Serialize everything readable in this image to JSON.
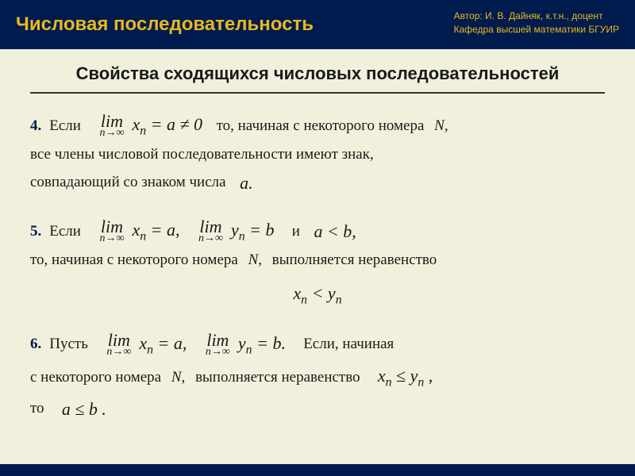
{
  "header": {
    "title": "Числовая последовательность",
    "author_line1": "Автор:  И. В. Дайняк,  к.т.н.,  доцент",
    "author_line2": "Кафедра высшей математики БГУИР"
  },
  "subtitle": "Свойства сходящихся числовых последовательностей",
  "colors": {
    "header_bg": "#001b4d",
    "header_text": "#e8b820",
    "body_bg": "#f0f0dc",
    "text": "#1a1a1a",
    "num_color": "#001b4d"
  },
  "item4": {
    "num": "4.",
    "before": "Если",
    "lim_top": "lim",
    "lim_bot": "n→∞",
    "expr": "xₙ = a ≠ 0",
    "after": "то, начиная с некоторого номера",
    "N": "N,",
    "line2": "все члены числовой последовательности имеют знак,",
    "line3a": "совпадающий со знаком числа",
    "line3b": "a."
  },
  "item5": {
    "num": "5.",
    "before": "Если",
    "lim_top": "lim",
    "lim_bot": "n→∞",
    "expr1": "xₙ = a,",
    "expr2": "yₙ = b",
    "and": "и",
    "cond": "a < b,",
    "line2a": "то, начиная с некоторого номера",
    "line2b": "N,",
    "line2c": "выполняется неравенство",
    "ineq": "xₙ < yₙ"
  },
  "item6": {
    "num": "6.",
    "before": "Пусть",
    "lim_top": "lim",
    "lim_bot": "n→∞",
    "expr1": "xₙ = a,",
    "expr2": "yₙ = b.",
    "after": "Если, начиная",
    "line2a": "с некоторого номера",
    "line2b": "N,",
    "line2c": "выполняется неравенство",
    "line2d": "xₙ ≤ yₙ ,",
    "line3a": "то",
    "line3b": "a ≤ b ."
  }
}
